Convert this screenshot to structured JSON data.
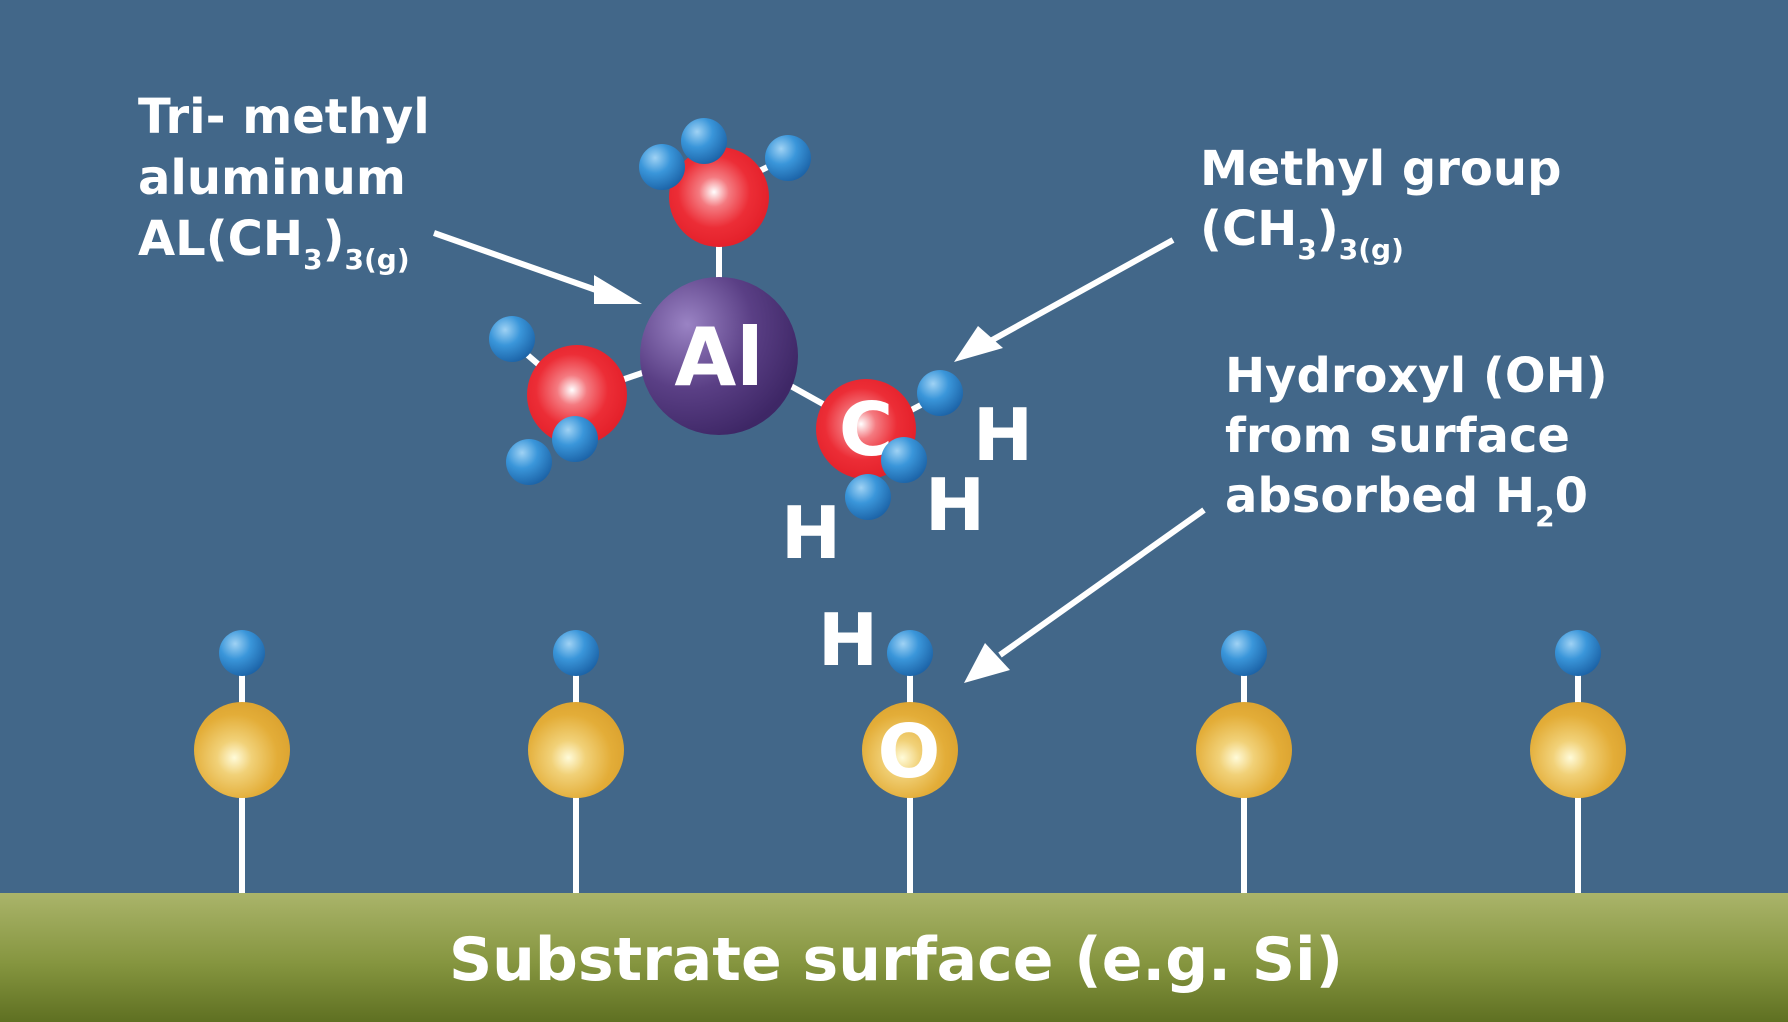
{
  "colors": {
    "background": "#426789",
    "aluminum": "#4f3675",
    "carbon": "#e8252d",
    "hydrogen": "#2f86cc",
    "oxygen": "#e3ad38",
    "substrate_top": "#aab46a",
    "substrate_bottom": "#5f7022",
    "text": "#ffffff"
  },
  "labels": {
    "tma": {
      "line1": "Tri- methyl",
      "line2": "aluminum",
      "formula_main": "AL(CH",
      "sub1": "3",
      "close": ")",
      "sub2": "3(g)"
    },
    "methyl": {
      "line1": "Methyl group",
      "formula_main": "(CH",
      "sub1": "3",
      "close": ")",
      "sub2": "3(g)"
    },
    "hydroxyl": {
      "line1": "Hydroxyl (OH)",
      "line2": "from surface",
      "line3_main": "absorbed H",
      "line3_sub": "2",
      "line3_end": "0"
    },
    "substrate": "Substrate surface (e.g. Si)"
  },
  "atoms": {
    "aluminum": "Al",
    "carbon": "C",
    "oxygen": "O",
    "hydrogen": "H"
  },
  "icons": [
    "arrow-tma",
    "arrow-methyl",
    "arrow-hydroxyl"
  ]
}
